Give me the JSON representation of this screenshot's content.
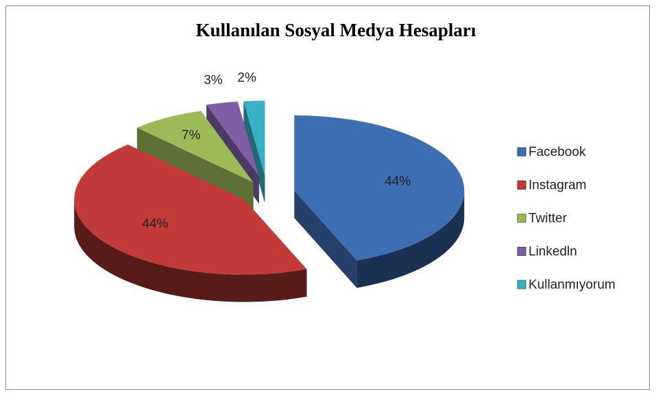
{
  "chart_data": {
    "type": "pie",
    "title": "Kullanılan Sosyal Medya Hesapları",
    "categories": [
      "Facebook",
      "Instagram",
      "Twitter",
      "Linkedln",
      "Kullanmıyorum"
    ],
    "values": [
      44,
      44,
      7,
      3,
      2
    ],
    "value_labels": [
      "44%",
      "44%",
      "7%",
      "3%",
      "2%"
    ],
    "colors": [
      "#3d6db3",
      "#c23b38",
      "#9bbb59",
      "#7e5fa6",
      "#3cafc8"
    ],
    "legend": "right"
  }
}
